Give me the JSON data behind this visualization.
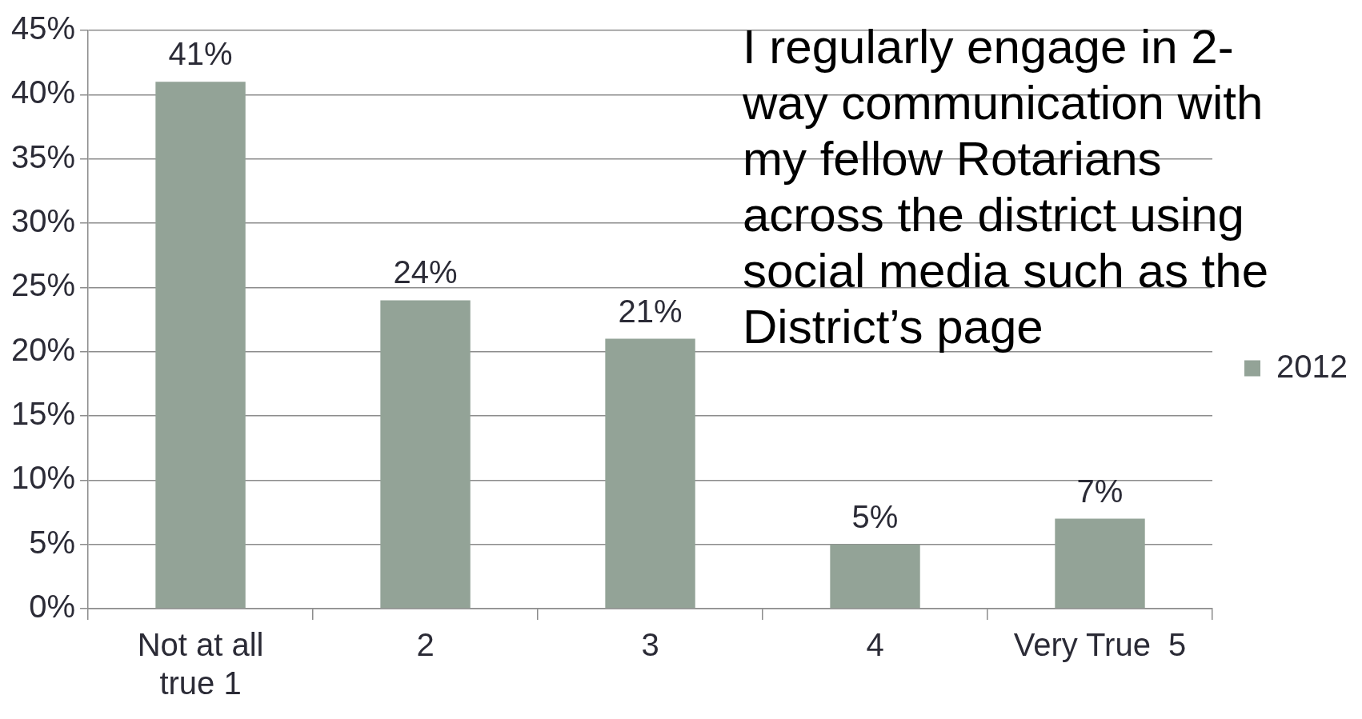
{
  "chart_data": {
    "type": "bar",
    "title": "I regularly engage in 2-way communication with my fellow Rotarians across the district using social media such as the District’s page",
    "categories": [
      "Not at all true 1",
      "2",
      "3",
      "4",
      "Very True  5"
    ],
    "series": [
      {
        "name": "2012",
        "color": "#93a397",
        "values": [
          41,
          24,
          21,
          5,
          7
        ],
        "value_labels": [
          "41%",
          "24%",
          "21%",
          "5%",
          "7%"
        ]
      }
    ],
    "ylim": [
      0,
      45
    ],
    "yticks": [
      {
        "value": 0,
        "label": "0%"
      },
      {
        "value": 5,
        "label": "5%"
      },
      {
        "value": 10,
        "label": "10%"
      },
      {
        "value": 15,
        "label": "15%"
      },
      {
        "value": 20,
        "label": "20%"
      },
      {
        "value": 25,
        "label": "25%"
      },
      {
        "value": 30,
        "label": "30%"
      },
      {
        "value": 35,
        "label": "35%"
      },
      {
        "value": 40,
        "label": "40%"
      },
      {
        "value": 45,
        "label": "45%"
      }
    ],
    "grid": "y",
    "legend": "right"
  }
}
